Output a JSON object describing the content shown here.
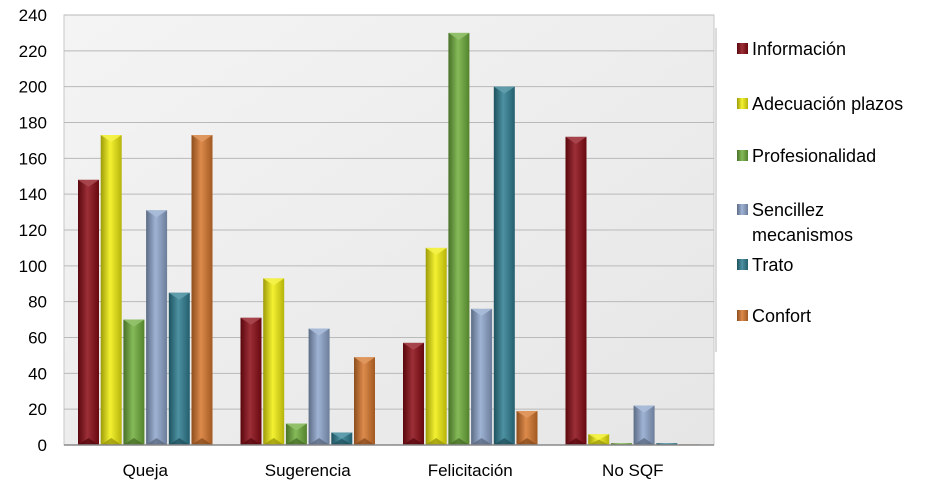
{
  "chart_data": {
    "type": "bar",
    "categories": [
      "Queja",
      "Sugerencia",
      "Felicitación",
      "No SQF"
    ],
    "series": [
      {
        "name": "Información",
        "values": [
          148,
          71,
          57,
          172
        ],
        "color": "#8B0A14"
      },
      {
        "name": "Adecuación plazos",
        "values": [
          173,
          93,
          110,
          6
        ],
        "color": "#F2EE0E"
      },
      {
        "name": "Profesionalidad",
        "values": [
          70,
          12,
          230,
          1
        ],
        "color": "#6FAE3C"
      },
      {
        "name": "Sencillez mecanismos",
        "legend_lines": [
          "Sencillez",
          "mecanismos"
        ],
        "values": [
          131,
          65,
          76,
          22
        ],
        "color": "#8EA6CC"
      },
      {
        "name": "Trato",
        "values": [
          85,
          7,
          200,
          1
        ],
        "color": "#2E7E91"
      },
      {
        "name": "Confort",
        "values": [
          173,
          49,
          19,
          0
        ],
        "color": "#D7772C"
      }
    ],
    "ylim": [
      0,
      240
    ],
    "yticks": [
      0,
      20,
      40,
      60,
      80,
      100,
      120,
      140,
      160,
      180,
      200,
      220,
      240
    ],
    "grid": true,
    "legend": "right"
  }
}
